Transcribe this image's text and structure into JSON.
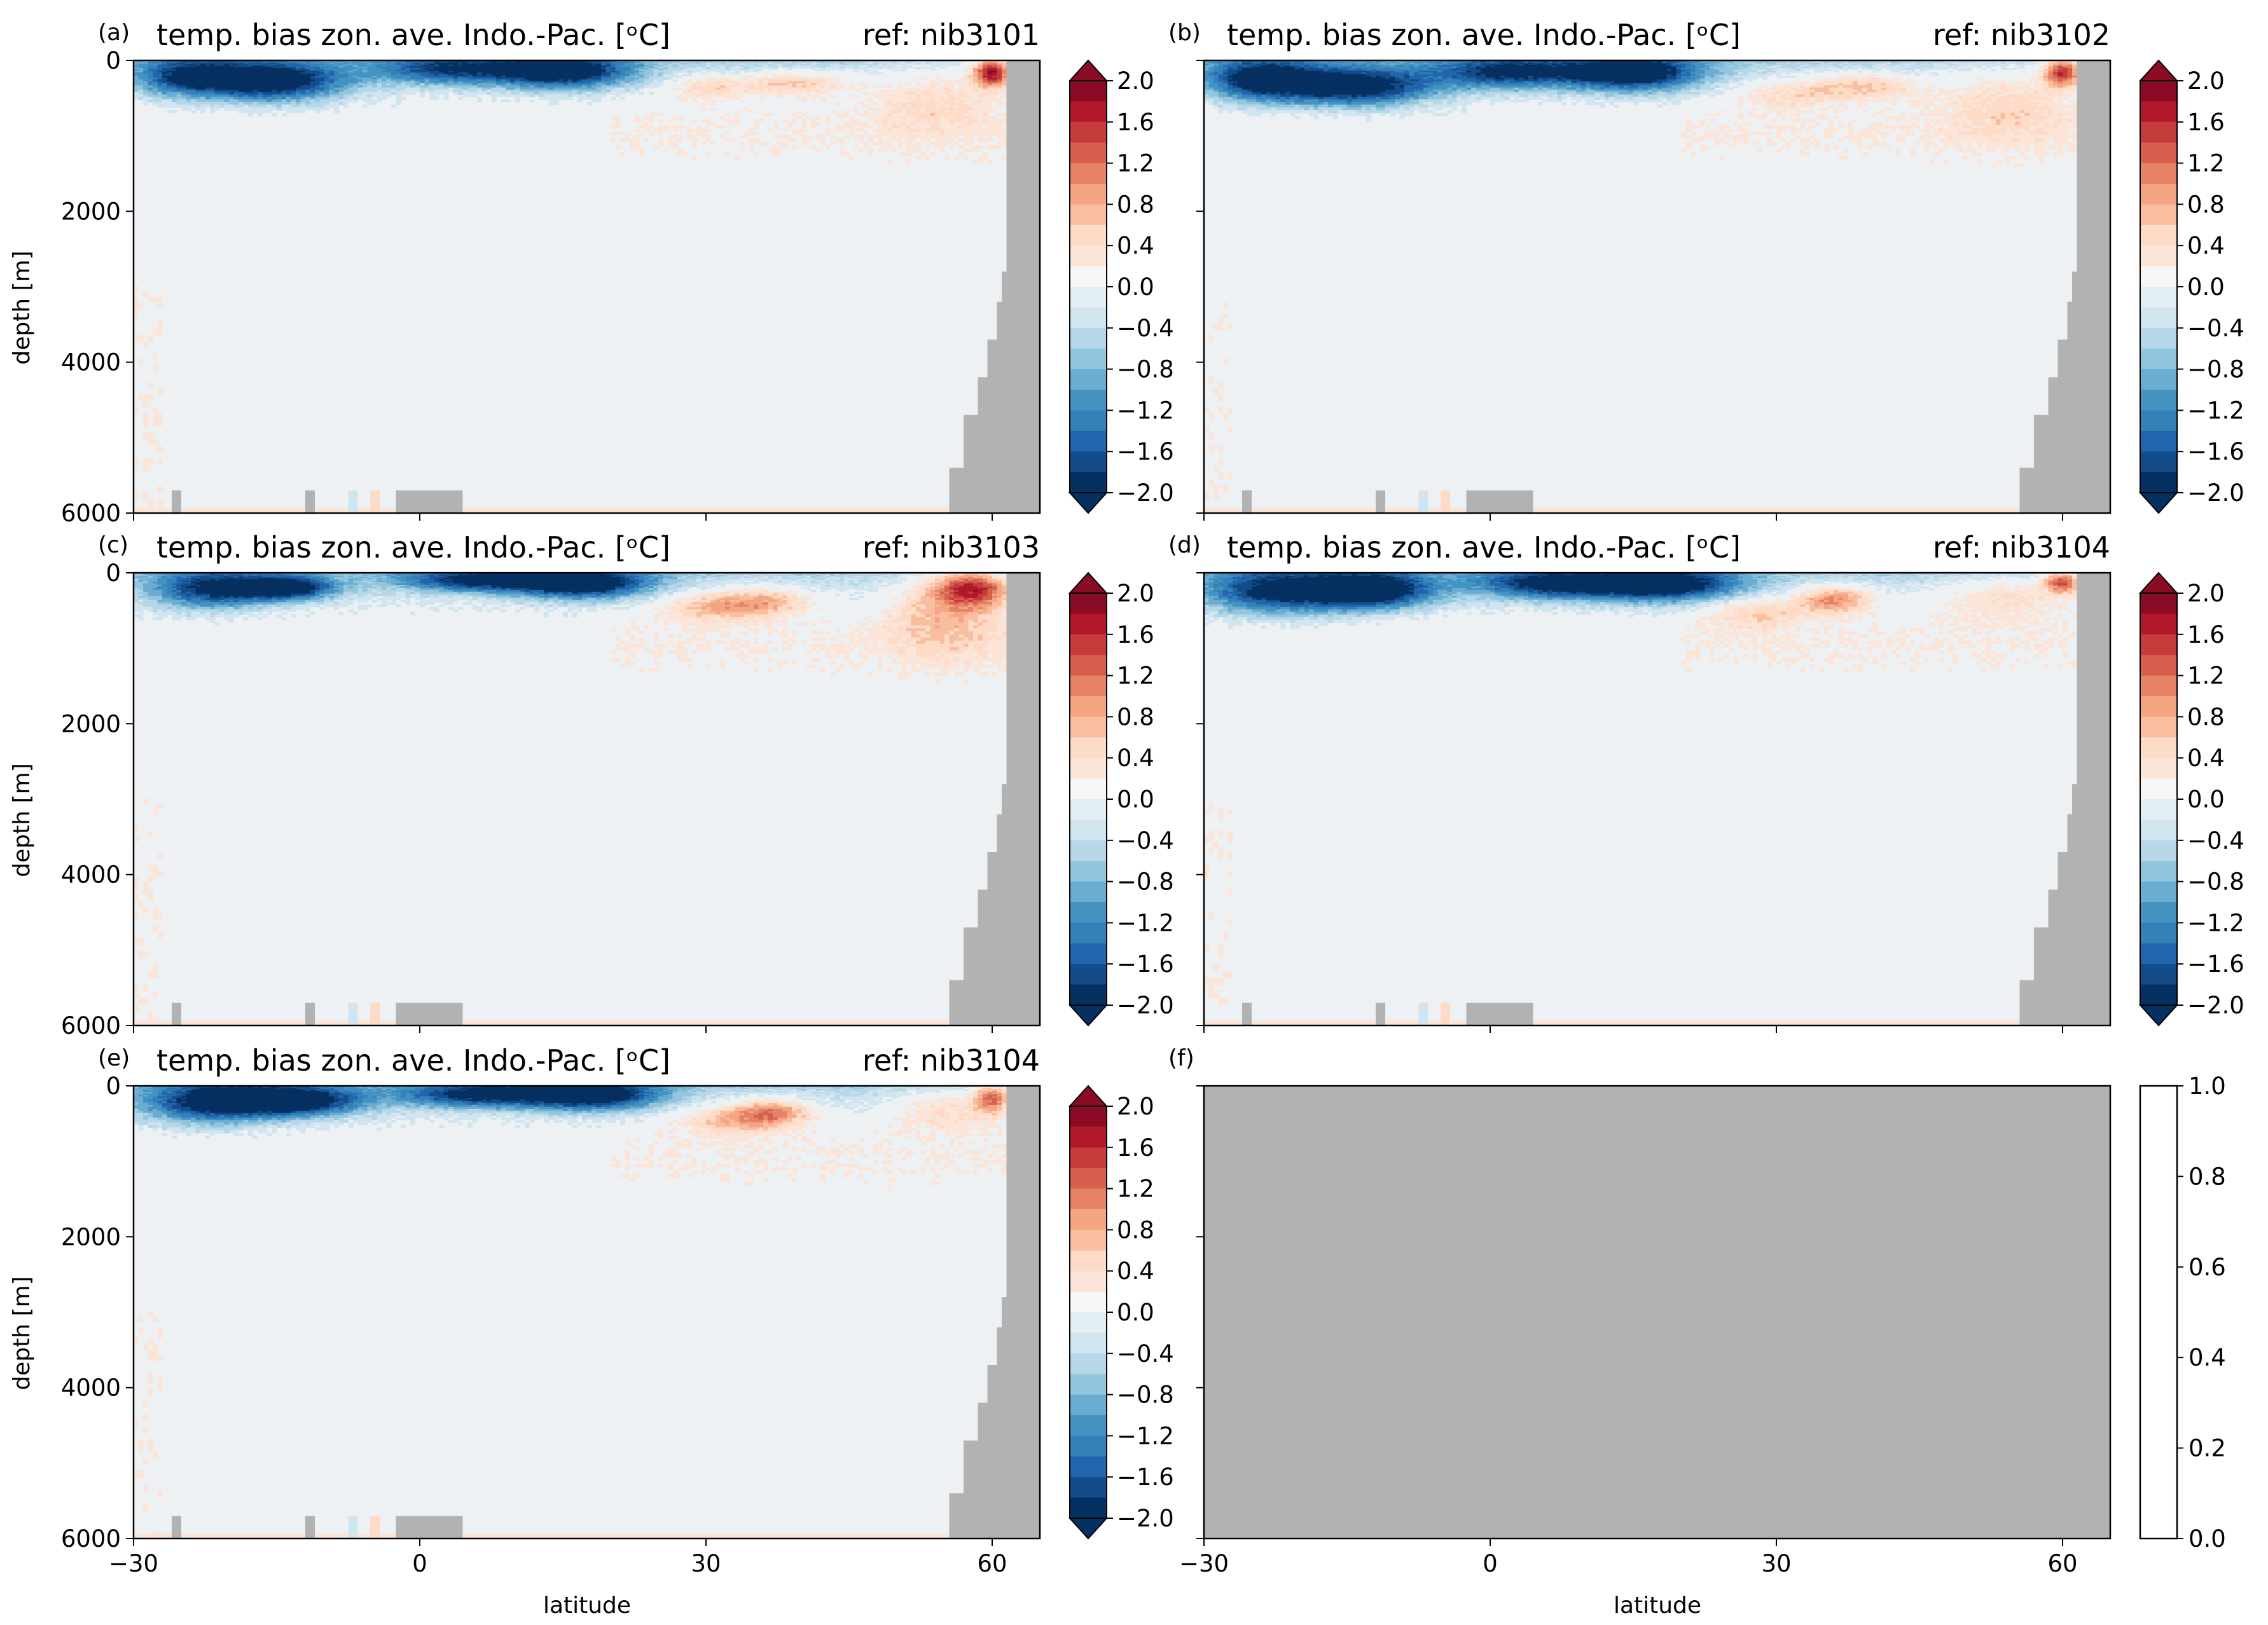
{
  "figure": {
    "colors": {
      "land": "#b2b2b2",
      "neutral": "#edf1f3",
      "frame": "#000000",
      "background": "#ffffff"
    },
    "xlabel": "latitude",
    "ylabel": "depth [m]",
    "colorbar_ticks": [
      "2.0",
      "1.6",
      "1.2",
      "0.8",
      "0.4",
      "0.0",
      "−0.4",
      "−0.8",
      "−1.2",
      "−1.6",
      "−2.0"
    ],
    "empty_colorbar_ticks": [
      "1.0",
      "0.8",
      "0.6",
      "0.4",
      "0.2",
      "0.0"
    ],
    "panels": [
      {
        "id": "a",
        "label": "(a)",
        "title": "temp. bias zon. ave. Indo.-Pac. [ᵒC]",
        "ref": "ref: nib3101"
      },
      {
        "id": "b",
        "label": "(b)",
        "title": "temp. bias zon. ave. Indo.-Pac. [ᵒC]",
        "ref": "ref: nib3102"
      },
      {
        "id": "c",
        "label": "(c)",
        "title": "temp. bias zon. ave. Indo.-Pac. [ᵒC]",
        "ref": "ref: nib3103"
      },
      {
        "id": "d",
        "label": "(d)",
        "title": "temp. bias zon. ave. Indo.-Pac. [ᵒC]",
        "ref": "ref: nib3104"
      },
      {
        "id": "e",
        "label": "(e)",
        "title": "temp. bias zon. ave. Indo.-Pac. [ᵒC]",
        "ref": "ref: nib3104"
      },
      {
        "id": "f",
        "label": "(f)",
        "title": "",
        "ref": ""
      }
    ]
  },
  "chart_data": {
    "type": "heatmap",
    "xlabel": "latitude",
    "ylabel": "depth [m]",
    "xlim": [
      -30,
      65
    ],
    "ylim": [
      6000,
      0
    ],
    "xticks": [
      -30,
      0,
      30,
      60
    ],
    "yticks": [
      0,
      2000,
      4000,
      6000
    ],
    "colorbar": {
      "min": -2.0,
      "max": 2.0,
      "step": 0.2,
      "extend": "both",
      "ticks": [
        2.0,
        1.6,
        1.2,
        0.8,
        0.4,
        0.0,
        -0.4,
        -0.8,
        -1.2,
        -1.6,
        -2.0
      ],
      "colors": [
        "#053061",
        "#134c89",
        "#2166ac",
        "#3480b9",
        "#4393c3",
        "#6bacd1",
        "#92c5de",
        "#b5d7e8",
        "#d1e5f0",
        "#e4eef5",
        "#f7f7f7",
        "#fbe5d8",
        "#fddbc7",
        "#f9bd9f",
        "#f4a582",
        "#e58267",
        "#d6604d",
        "#c43c3c",
        "#b2182b",
        "#8a0b24"
      ]
    },
    "land_mask": {
      "north_boundary": [
        [
          55.5,
          6000
        ],
        [
          55.5,
          5400
        ],
        [
          57,
          5400
        ],
        [
          57,
          4700
        ],
        [
          58.5,
          4700
        ],
        [
          58.5,
          4200
        ],
        [
          59.5,
          4200
        ],
        [
          59.5,
          3700
        ],
        [
          60.5,
          3700
        ],
        [
          60.5,
          3200
        ],
        [
          61,
          3200
        ],
        [
          61,
          2800
        ],
        [
          61.5,
          2800
        ],
        [
          61.5,
          0
        ],
        [
          65,
          0
        ],
        [
          65,
          6000
        ]
      ],
      "seafloor_blocks": [
        [
          -26,
          -25,
          5700
        ],
        [
          -12,
          -11,
          5700
        ],
        [
          -2.5,
          4.5,
          5700
        ]
      ]
    },
    "panels": [
      {
        "id": "a",
        "ref": "nib3101",
        "surface_scale": 1.0,
        "features": [
          {
            "lat": -24,
            "depth": 220,
            "dlat": 6,
            "ddepth": 260,
            "value": -1.6
          },
          {
            "lat": -15,
            "depth": 280,
            "dlat": 7,
            "ddepth": 260,
            "value": -2.0
          },
          {
            "lat": 3,
            "depth": 120,
            "dlat": 8,
            "ddepth": 200,
            "value": -1.4
          },
          {
            "lat": 15,
            "depth": 150,
            "dlat": 7,
            "ddepth": 220,
            "value": -2.0
          },
          {
            "lat": 30,
            "depth": 350,
            "dlat": 4,
            "ddepth": 170,
            "value": 0.6
          },
          {
            "lat": 39,
            "depth": 300,
            "dlat": 6,
            "ddepth": 160,
            "value": 0.8
          },
          {
            "lat": 54,
            "depth": 450,
            "dlat": 7,
            "ddepth": 500,
            "value": 0.5
          },
          {
            "lat": 60,
            "depth": 150,
            "dlat": 2,
            "ddepth": 200,
            "value": 2.0
          }
        ]
      },
      {
        "id": "b",
        "ref": "nib3102",
        "surface_scale": 1.0,
        "features": [
          {
            "lat": -24,
            "depth": 250,
            "dlat": 6,
            "ddepth": 280,
            "value": -1.8
          },
          {
            "lat": -14,
            "depth": 350,
            "dlat": 8,
            "ddepth": 260,
            "value": -2.0
          },
          {
            "lat": 2,
            "depth": 160,
            "dlat": 8,
            "ddepth": 220,
            "value": -1.6
          },
          {
            "lat": 15,
            "depth": 170,
            "dlat": 7,
            "ddepth": 240,
            "value": -2.0
          },
          {
            "lat": 31,
            "depth": 450,
            "dlat": 5,
            "ddepth": 180,
            "value": 0.5
          },
          {
            "lat": 39,
            "depth": 330,
            "dlat": 6,
            "ddepth": 180,
            "value": 0.8
          },
          {
            "lat": 54,
            "depth": 500,
            "dlat": 7,
            "ddepth": 550,
            "value": 0.5
          },
          {
            "lat": 60,
            "depth": 150,
            "dlat": 2,
            "ddepth": 200,
            "value": 1.8
          }
        ]
      },
      {
        "id": "c",
        "ref": "nib3103",
        "surface_scale": 1.0,
        "features": [
          {
            "lat": -22,
            "depth": 220,
            "dlat": 6,
            "ddepth": 260,
            "value": -1.6
          },
          {
            "lat": -14,
            "depth": 200,
            "dlat": 5,
            "ddepth": 160,
            "value": -2.0
          },
          {
            "lat": 6,
            "depth": 100,
            "dlat": 8,
            "ddepth": 150,
            "value": -1.6
          },
          {
            "lat": 17,
            "depth": 140,
            "dlat": 7,
            "ddepth": 200,
            "value": -2.0
          },
          {
            "lat": 30,
            "depth": 450,
            "dlat": 5,
            "ddepth": 200,
            "value": 0.7
          },
          {
            "lat": 36,
            "depth": 380,
            "dlat": 5,
            "ddepth": 200,
            "value": 0.9
          },
          {
            "lat": 55,
            "depth": 500,
            "dlat": 6,
            "ddepth": 600,
            "value": 0.7
          },
          {
            "lat": 58,
            "depth": 200,
            "dlat": 4,
            "ddepth": 250,
            "value": 1.6
          }
        ]
      },
      {
        "id": "d",
        "ref": "nib3104",
        "surface_scale": 1.0,
        "features": [
          {
            "lat": -22,
            "depth": 250,
            "dlat": 8,
            "ddepth": 300,
            "value": -1.8
          },
          {
            "lat": -12,
            "depth": 230,
            "dlat": 6,
            "ddepth": 240,
            "value": -2.0
          },
          {
            "lat": 6,
            "depth": 150,
            "dlat": 8,
            "ddepth": 200,
            "value": -1.6
          },
          {
            "lat": 18,
            "depth": 160,
            "dlat": 8,
            "ddepth": 220,
            "value": -2.0
          },
          {
            "lat": 28,
            "depth": 520,
            "dlat": 5,
            "ddepth": 200,
            "value": 0.6
          },
          {
            "lat": 36,
            "depth": 350,
            "dlat": 4,
            "ddepth": 180,
            "value": 1.2
          },
          {
            "lat": 54,
            "depth": 300,
            "dlat": 7,
            "ddepth": 300,
            "value": 0.6
          },
          {
            "lat": 60,
            "depth": 120,
            "dlat": 2,
            "ddepth": 150,
            "value": 1.6
          }
        ]
      },
      {
        "id": "e",
        "ref": "nib3104",
        "surface_scale": 1.0,
        "features": [
          {
            "lat": -22,
            "depth": 220,
            "dlat": 7,
            "ddepth": 280,
            "value": -1.7
          },
          {
            "lat": -13,
            "depth": 200,
            "dlat": 7,
            "ddepth": 200,
            "value": -2.0
          },
          {
            "lat": 6,
            "depth": 120,
            "dlat": 8,
            "ddepth": 170,
            "value": -1.6
          },
          {
            "lat": 18,
            "depth": 120,
            "dlat": 7,
            "ddepth": 200,
            "value": -2.0
          },
          {
            "lat": 32,
            "depth": 450,
            "dlat": 5,
            "ddepth": 200,
            "value": 0.7
          },
          {
            "lat": 37,
            "depth": 350,
            "dlat": 4,
            "ddepth": 180,
            "value": 1.2
          },
          {
            "lat": 55,
            "depth": 300,
            "dlat": 6,
            "ddepth": 300,
            "value": 0.6
          },
          {
            "lat": 60,
            "depth": 150,
            "dlat": 2,
            "ddepth": 200,
            "value": 1.4
          }
        ]
      },
      {
        "id": "f",
        "ref": "",
        "empty": true,
        "colorbar_range": [
          0.0,
          1.0
        ]
      }
    ]
  }
}
